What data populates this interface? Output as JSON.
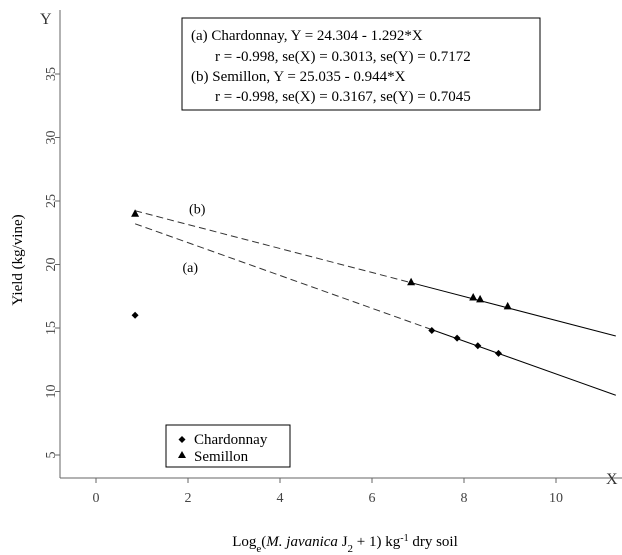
{
  "chart_data": {
    "type": "scatter",
    "xlabel": {
      "prefix": "Log",
      "sub": "e",
      "open": "(",
      "species": "M. javanica",
      "stage": " J",
      "stage_sub": "2",
      "rest": " + 1) kg",
      "sup": "-1",
      "suffix": " dry soil"
    },
    "ylabel": "Yield (kg/vine)",
    "x_axis_letter": "X",
    "y_axis_letter": "Y",
    "xlim": [
      -0.5,
      11.3
    ],
    "ylim": [
      2,
      39
    ],
    "x_ticks": [
      0,
      2,
      4,
      6,
      8,
      10
    ],
    "y_ticks": [
      5,
      10,
      15,
      20,
      25,
      30,
      35
    ],
    "series": [
      {
        "name": "Chardonnay",
        "marker": "diamond",
        "points": [
          {
            "x": 0.85,
            "y": 16.0
          },
          {
            "x": 7.3,
            "y": 14.8
          },
          {
            "x": 7.85,
            "y": 14.2
          },
          {
            "x": 8.3,
            "y": 13.6
          },
          {
            "x": 8.75,
            "y": 13.0
          }
        ],
        "fit": {
          "intercept": 24.304,
          "slope": -1.292,
          "dashed_range": [
            0.85,
            7.3
          ],
          "solid_range": [
            7.3,
            11.3
          ]
        },
        "label": "(a)",
        "label_pos": {
          "x": 2.05,
          "y": 19.4
        }
      },
      {
        "name": "Semillon",
        "marker": "triangle",
        "points": [
          {
            "x": 0.85,
            "y": 24.0
          },
          {
            "x": 6.85,
            "y": 18.6
          },
          {
            "x": 8.2,
            "y": 17.4
          },
          {
            "x": 8.35,
            "y": 17.25
          },
          {
            "x": 8.95,
            "y": 16.7
          }
        ],
        "fit": {
          "intercept": 25.035,
          "slope": -0.944,
          "dashed_range": [
            0.85,
            6.85
          ],
          "solid_range": [
            6.85,
            11.3
          ]
        },
        "label": "(b)",
        "label_pos": {
          "x": 2.2,
          "y": 24.0
        }
      }
    ],
    "equations": [
      "(a) Chardonnay, Y = 24.304 - 1.292*X",
      "r = -0.998, se(X) = 0.3013, se(Y) = 0.7172",
      "(b) Semillon, Y = 25.035 - 0.944*X",
      "r = -0.998, se(X) = 0.3167, se(Y) = 0.7045"
    ],
    "legend": [
      "Chardonnay",
      "Semillon"
    ],
    "legend_position": "bottom-left",
    "grid": false
  }
}
